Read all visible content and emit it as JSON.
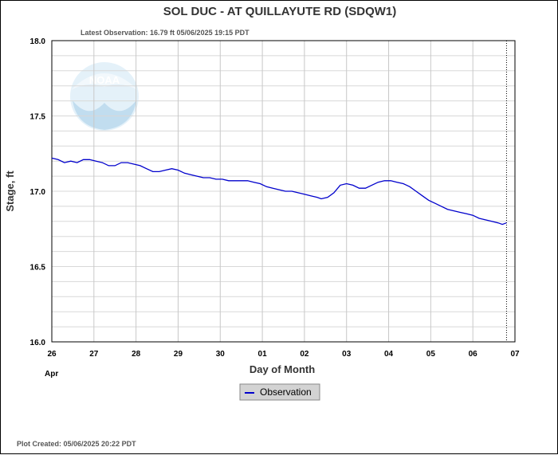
{
  "chart_data": {
    "type": "line",
    "title": "SOL DUC - AT QUILLAYUTE RD  (SDQW1)",
    "subtitle": "Latest Observation: 16.79 ft 05/06/2025 19:15 PDT",
    "xlabel": "Day of Month",
    "xlabel_sub": "Apr",
    "ylabel": "Stage, ft",
    "ylim": [
      16.0,
      18.0
    ],
    "yticks": [
      "16.0",
      "16.5",
      "17.0",
      "17.5",
      "18.0"
    ],
    "xlim": [
      0,
      11
    ],
    "xticks": [
      "26",
      "27",
      "28",
      "29",
      "30",
      "01",
      "02",
      "03",
      "04",
      "05",
      "06",
      "07"
    ],
    "grid": true,
    "legend": "bottom-center",
    "latest_marker_x": 10.8,
    "series": [
      {
        "name": "Observation",
        "color": "#0000cc",
        "points": [
          [
            0.0,
            17.22
          ],
          [
            0.15,
            17.21
          ],
          [
            0.3,
            17.19
          ],
          [
            0.45,
            17.2
          ],
          [
            0.6,
            17.19
          ],
          [
            0.75,
            17.21
          ],
          [
            0.9,
            17.21
          ],
          [
            1.05,
            17.2
          ],
          [
            1.2,
            17.19
          ],
          [
            1.35,
            17.17
          ],
          [
            1.5,
            17.17
          ],
          [
            1.65,
            17.19
          ],
          [
            1.8,
            17.19
          ],
          [
            1.95,
            17.18
          ],
          [
            2.1,
            17.17
          ],
          [
            2.25,
            17.15
          ],
          [
            2.4,
            17.13
          ],
          [
            2.55,
            17.13
          ],
          [
            2.7,
            17.14
          ],
          [
            2.85,
            17.15
          ],
          [
            3.0,
            17.14
          ],
          [
            3.15,
            17.12
          ],
          [
            3.3,
            17.11
          ],
          [
            3.45,
            17.1
          ],
          [
            3.6,
            17.09
          ],
          [
            3.75,
            17.09
          ],
          [
            3.9,
            17.08
          ],
          [
            4.05,
            17.08
          ],
          [
            4.2,
            17.07
          ],
          [
            4.35,
            17.07
          ],
          [
            4.5,
            17.07
          ],
          [
            4.65,
            17.07
          ],
          [
            4.8,
            17.06
          ],
          [
            4.95,
            17.05
          ],
          [
            5.1,
            17.03
          ],
          [
            5.25,
            17.02
          ],
          [
            5.4,
            17.01
          ],
          [
            5.55,
            17.0
          ],
          [
            5.7,
            17.0
          ],
          [
            5.85,
            16.99
          ],
          [
            6.0,
            16.98
          ],
          [
            6.15,
            16.97
          ],
          [
            6.3,
            16.96
          ],
          [
            6.4,
            16.95
          ],
          [
            6.55,
            16.96
          ],
          [
            6.7,
            16.99
          ],
          [
            6.85,
            17.04
          ],
          [
            7.0,
            17.05
          ],
          [
            7.15,
            17.04
          ],
          [
            7.3,
            17.02
          ],
          [
            7.45,
            17.02
          ],
          [
            7.6,
            17.04
          ],
          [
            7.75,
            17.06
          ],
          [
            7.9,
            17.07
          ],
          [
            8.05,
            17.07
          ],
          [
            8.2,
            17.06
          ],
          [
            8.35,
            17.05
          ],
          [
            8.5,
            17.03
          ],
          [
            8.65,
            17.0
          ],
          [
            8.8,
            16.97
          ],
          [
            8.95,
            16.94
          ],
          [
            9.1,
            16.92
          ],
          [
            9.25,
            16.9
          ],
          [
            9.4,
            16.88
          ],
          [
            9.55,
            16.87
          ],
          [
            9.7,
            16.86
          ],
          [
            9.85,
            16.85
          ],
          [
            10.0,
            16.84
          ],
          [
            10.15,
            16.82
          ],
          [
            10.3,
            16.81
          ],
          [
            10.45,
            16.8
          ],
          [
            10.6,
            16.79
          ],
          [
            10.7,
            16.78
          ],
          [
            10.8,
            16.79
          ]
        ]
      }
    ]
  },
  "footer": {
    "plot_created": "Plot Created: 05/06/2025 20:22 PDT"
  },
  "logo": {
    "text": "NOAA",
    "color": "#9ecbe6"
  }
}
